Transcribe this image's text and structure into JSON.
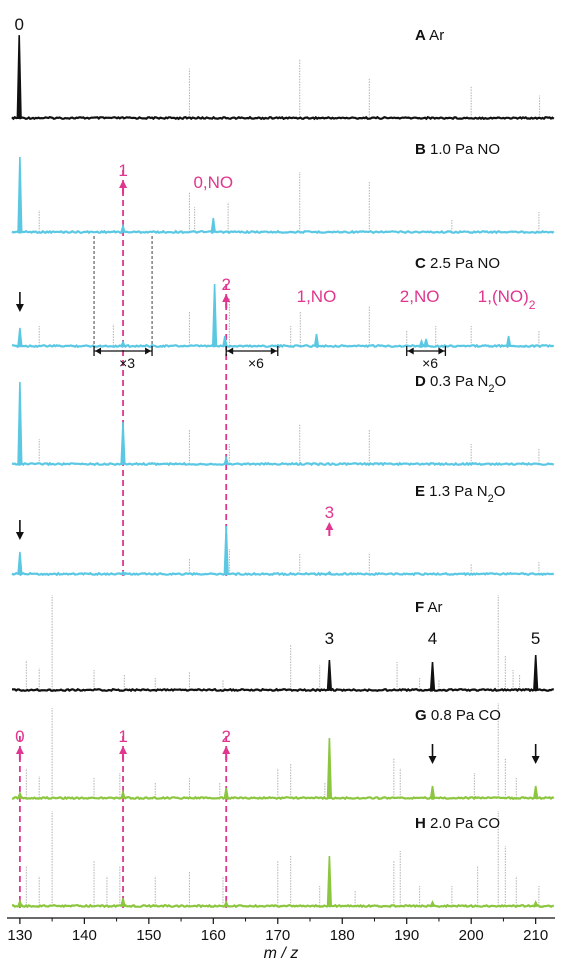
{
  "colors": {
    "black": "#111111",
    "cyan": "#5bc8e3",
    "green": "#8cc63f",
    "magenta": "#e0368f",
    "grey": "#b8b8b8"
  },
  "chart_data": {
    "type": "line",
    "xlabel": "m / z",
    "xlim": [
      128,
      213
    ],
    "xticks": [
      130,
      140,
      150,
      160,
      170,
      180,
      190,
      200,
      210
    ],
    "panels": [
      {
        "letter": "A",
        "label": "Ar",
        "color": "black",
        "peaks": [
          {
            "x": 129.9,
            "h": 0.92
          }
        ],
        "grey": [
          [
            156.3,
            0.55
          ],
          [
            173.4,
            0.65
          ],
          [
            184.2,
            0.45
          ],
          [
            200,
            0.35
          ],
          [
            210.6,
            0.25
          ]
        ]
      },
      {
        "letter": "B",
        "label": "1.0 Pa NO",
        "color": "cyan",
        "peaks": [
          {
            "x": 130,
            "h": 0.75
          },
          {
            "x": 146,
            "h": 0.06
          },
          {
            "x": 160,
            "h": 0.14
          }
        ],
        "grey": [
          [
            133,
            0.22
          ],
          [
            156.3,
            0.4
          ],
          [
            157.1,
            0.25
          ],
          [
            162.3,
            0.3
          ],
          [
            173.4,
            0.6
          ],
          [
            184.2,
            0.5
          ],
          [
            197,
            0.12
          ],
          [
            210.5,
            0.2
          ]
        ]
      },
      {
        "letter": "C",
        "label": "2.5 Pa NO",
        "color": "cyan",
        "peaks": [
          {
            "x": 130,
            "h": 0.18
          },
          {
            "x": 146,
            "h": 0.04
          },
          {
            "x": 160.2,
            "h": 0.62
          },
          {
            "x": 161.8,
            "h": 0.1
          },
          {
            "x": 176,
            "h": 0.12
          },
          {
            "x": 192.3,
            "h": 0.05
          },
          {
            "x": 193,
            "h": 0.07
          },
          {
            "x": 205.8,
            "h": 0.1
          }
        ],
        "grey": [
          [
            133,
            0.2
          ],
          [
            144.5,
            0.22
          ],
          [
            156.3,
            0.35
          ],
          [
            162.5,
            0.48
          ],
          [
            172,
            0.2
          ],
          [
            173.5,
            0.35
          ],
          [
            184.2,
            0.4
          ],
          [
            190,
            0.15
          ],
          [
            194.5,
            0.2
          ],
          [
            200,
            0.2
          ],
          [
            210.5,
            0.15
          ]
        ]
      },
      {
        "letter": "D",
        "label": "0.3 Pa N",
        "sub": "2",
        "tail": "O",
        "color": "cyan",
        "peaks": [
          {
            "x": 130,
            "h": 0.82
          },
          {
            "x": 146,
            "h": 0.42
          },
          {
            "x": 162,
            "h": 0.06
          }
        ],
        "grey": [
          [
            133,
            0.25
          ],
          [
            156.3,
            0.35
          ],
          [
            162.5,
            0.2
          ],
          [
            173.4,
            0.4
          ],
          [
            184.2,
            0.35
          ],
          [
            200,
            0.2
          ],
          [
            210.5,
            0.15
          ]
        ]
      },
      {
        "letter": "E",
        "label": "1.3 Pa N",
        "sub": "2",
        "tail": "O",
        "color": "cyan",
        "peaks": [
          {
            "x": 130,
            "h": 0.22
          },
          {
            "x": 146,
            "h": 0.02
          },
          {
            "x": 162,
            "h": 0.48
          },
          {
            "x": 178,
            "h": 0.02
          }
        ],
        "grey": [
          [
            156.3,
            0.15
          ],
          [
            162.5,
            0.25
          ],
          [
            173.4,
            0.2
          ],
          [
            184.2,
            0.2
          ],
          [
            200,
            0.1
          ],
          [
            210.5,
            0.12
          ]
        ]
      },
      {
        "letter": "F",
        "label": "Ar",
        "color": "black",
        "peaks": [
          {
            "x": 178,
            "h": 0.3
          },
          {
            "x": 194,
            "h": 0.28
          },
          {
            "x": 210,
            "h": 0.35
          }
        ],
        "grey": [
          [
            131,
            0.3
          ],
          [
            133,
            0.22
          ],
          [
            135,
            0.95
          ],
          [
            141.5,
            0.2
          ],
          [
            146.2,
            0.15
          ],
          [
            151,
            0.12
          ],
          [
            156.3,
            0.18
          ],
          [
            161.5,
            0.1
          ],
          [
            172,
            0.45
          ],
          [
            176.5,
            0.25
          ],
          [
            188.5,
            0.28
          ],
          [
            192,
            0.12
          ],
          [
            195,
            0.1
          ],
          [
            204.2,
            0.95
          ],
          [
            205.3,
            0.35
          ],
          [
            206.5,
            0.2
          ],
          [
            207.5,
            0.15
          ]
        ]
      },
      {
        "letter": "G",
        "label": "0.8 Pa CO",
        "color": "green",
        "peaks": [
          {
            "x": 130,
            "h": 0.05
          },
          {
            "x": 146,
            "h": 0.06
          },
          {
            "x": 162,
            "h": 0.1
          },
          {
            "x": 178,
            "h": 0.6
          },
          {
            "x": 194,
            "h": 0.12
          },
          {
            "x": 210,
            "h": 0.12
          }
        ],
        "grey": [
          [
            131,
            0.3
          ],
          [
            133,
            0.22
          ],
          [
            135,
            0.9
          ],
          [
            141.5,
            0.2
          ],
          [
            145.5,
            0.25
          ],
          [
            151,
            0.15
          ],
          [
            156.3,
            0.2
          ],
          [
            161,
            0.15
          ],
          [
            170,
            0.3
          ],
          [
            172,
            0.35
          ],
          [
            177.3,
            0.15
          ],
          [
            188,
            0.4
          ],
          [
            189,
            0.3
          ],
          [
            200.5,
            0.25
          ],
          [
            204.2,
            0.95
          ],
          [
            205.3,
            0.4
          ],
          [
            207,
            0.2
          ]
        ]
      },
      {
        "letter": "H",
        "label": "2.0 Pa CO",
        "color": "green",
        "peaks": [
          {
            "x": 130,
            "h": 0.05
          },
          {
            "x": 146,
            "h": 0.08
          },
          {
            "x": 162,
            "h": 0.04
          },
          {
            "x": 178,
            "h": 0.5
          },
          {
            "x": 194,
            "h": 0.04
          },
          {
            "x": 210,
            "h": 0.04
          }
        ],
        "grey": [
          [
            131,
            0.4
          ],
          [
            133,
            0.3
          ],
          [
            135,
            0.95
          ],
          [
            141.5,
            0.45
          ],
          [
            143.5,
            0.3
          ],
          [
            145.5,
            0.4
          ],
          [
            151,
            0.3
          ],
          [
            156.3,
            0.35
          ],
          [
            161.5,
            0.3
          ],
          [
            170,
            0.45
          ],
          [
            172,
            0.5
          ],
          [
            176.5,
            0.2
          ],
          [
            182,
            0.15
          ],
          [
            188,
            0.45
          ],
          [
            189,
            0.55
          ],
          [
            192,
            0.2
          ],
          [
            197,
            0.2
          ],
          [
            201,
            0.4
          ],
          [
            204.2,
            0.95
          ],
          [
            205.3,
            0.6
          ],
          [
            207,
            0.3
          ],
          [
            210.5,
            0.2
          ]
        ]
      }
    ],
    "annotations": {
      "magenta_labels": [
        {
          "panel": "B",
          "x": 146,
          "text": "1",
          "arrow": true
        },
        {
          "panel": "B",
          "x": 160,
          "text": "0,NO",
          "arrow": false
        },
        {
          "panel": "C",
          "x": 162,
          "text": "2",
          "arrow": true
        },
        {
          "panel": "C",
          "x": 176,
          "text": "1,NO",
          "arrow": false
        },
        {
          "panel": "C",
          "x": 192,
          "text": "2,NO",
          "arrow": false
        },
        {
          "panel": "C",
          "x": 205.5,
          "text": "1,(NO)",
          "sub": "2",
          "arrow": false
        },
        {
          "panel": "E",
          "x": 178,
          "text": "3",
          "arrow": true
        },
        {
          "panel": "G",
          "x": 130,
          "text": "0",
          "arrow": true
        },
        {
          "panel": "G",
          "x": 146,
          "text": "1",
          "arrow": true
        },
        {
          "panel": "G",
          "x": 162,
          "text": "2",
          "arrow": true
        }
      ],
      "black_labels": [
        {
          "panel": "A",
          "x": 129.9,
          "text": "0"
        },
        {
          "panel": "F",
          "x": 178,
          "text": "3"
        },
        {
          "panel": "F",
          "x": 194,
          "text": "4"
        },
        {
          "panel": "F",
          "x": 210,
          "text": "5"
        }
      ],
      "down_arrows": [
        {
          "panel": "C",
          "x": 130
        },
        {
          "panel": "E",
          "x": 130
        },
        {
          "panel": "G",
          "x": 194
        },
        {
          "panel": "G",
          "x": 210
        }
      ],
      "scale_brackets": [
        {
          "panel": "C",
          "x1": 141.5,
          "x2": 150.5,
          "text": "×3",
          "box": true
        },
        {
          "panel": "C",
          "x1": 162,
          "x2": 170,
          "text": "×6",
          "box": false
        },
        {
          "panel": "C",
          "x1": 190,
          "x2": 196,
          "text": "×6",
          "box": false
        }
      ],
      "dashed_lines": [
        {
          "x": 146,
          "from": "B",
          "to": "E"
        },
        {
          "x": 162,
          "from": "C",
          "to": "E"
        },
        {
          "x": 130,
          "from": "G",
          "to": "H"
        },
        {
          "x": 146,
          "from": "G",
          "to": "H"
        },
        {
          "x": 162,
          "from": "G",
          "to": "H"
        }
      ]
    }
  }
}
